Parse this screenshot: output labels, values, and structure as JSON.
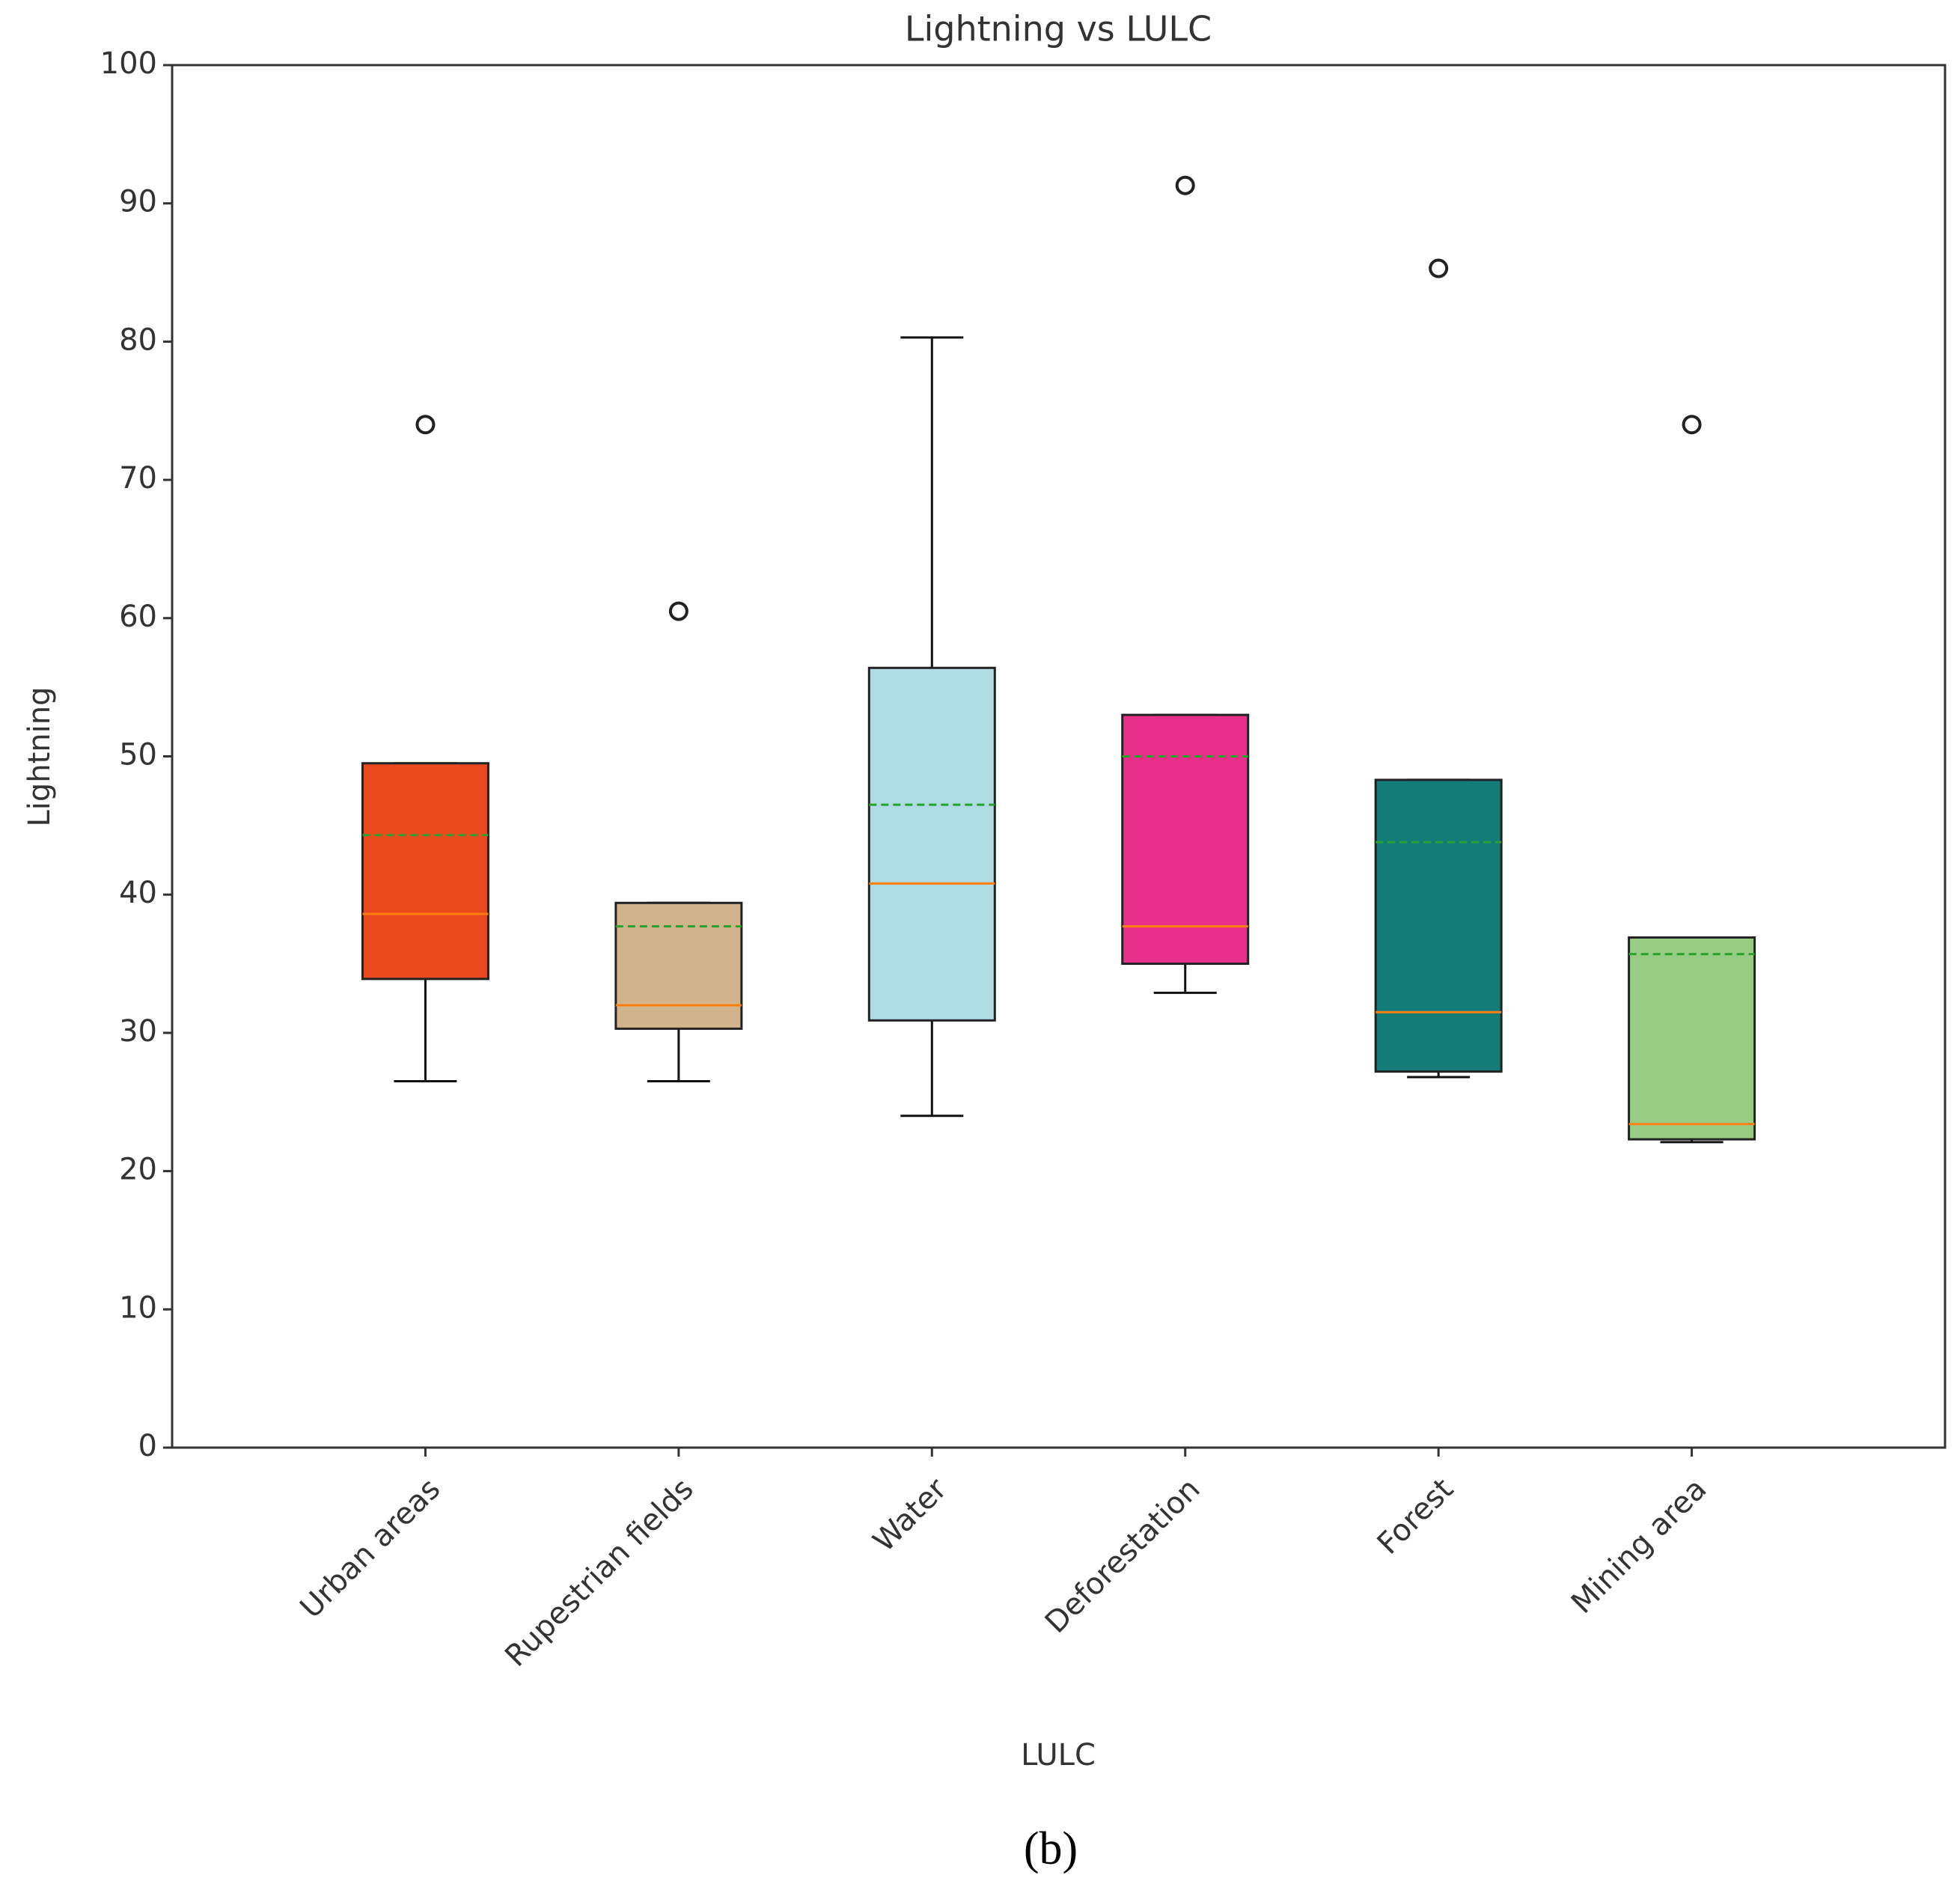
{
  "chart_data": {
    "type": "box",
    "title": "Lightning vs LULC",
    "x_label": "LULC",
    "y_label": "Lightning",
    "caption": "(b)",
    "categories": [
      "Urban areas",
      "Rupestrian fields",
      "Water",
      "Deforestation",
      "Forest",
      "Mining area"
    ],
    "colors": [
      "#e84a1e",
      "#d2b48c",
      "#b0dce3",
      "#e6308a",
      "#137c78",
      "#98cc84"
    ],
    "whisker_low": [
      26.5,
      26.5,
      24,
      32.9,
      26.8,
      22.1
    ],
    "q1": [
      33.9,
      30.3,
      30.9,
      35,
      27.2,
      22.3
    ],
    "median": [
      38.6,
      32,
      40.8,
      37.7,
      31.5,
      23.4
    ],
    "q3": [
      49.5,
      39.4,
      56.4,
      53,
      48.3,
      36.9
    ],
    "whisker_high": [
      49.5,
      39.4,
      80.3,
      53,
      48.3,
      36.9
    ],
    "mean": [
      44.3,
      37.7,
      46.5,
      50,
      43.8,
      35.7
    ],
    "outliers": [
      [
        74
      ],
      [
        60.5
      ],
      [],
      [
        91.3
      ],
      [
        85.3
      ],
      [
        74
      ]
    ],
    "median_color": "#ff7f0e",
    "mean_color": "#2ca02c",
    "ylim": [
      0,
      100
    ],
    "yticks": [
      0,
      10,
      20,
      30,
      40,
      50,
      60,
      70,
      80,
      90,
      100
    ]
  }
}
